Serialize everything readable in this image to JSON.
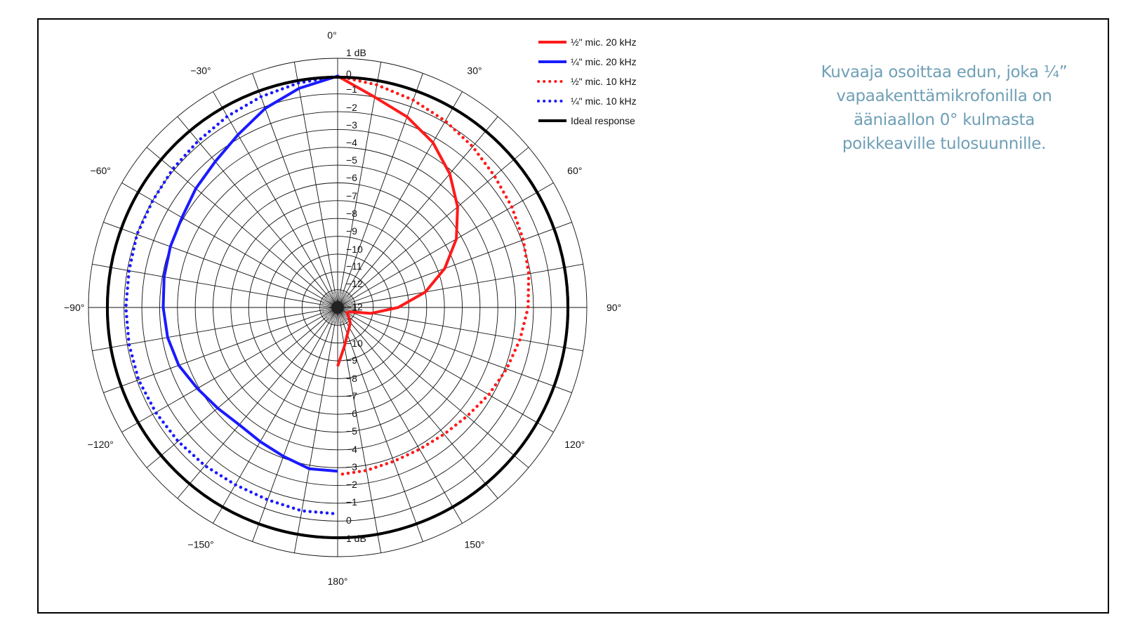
{
  "caption": {
    "lines": [
      "Kuvaaja osoittaa edun, joka ¼”",
      "vapaakenttämikrofonilla on",
      "ääniaallon  0° kulmasta",
      "poikkeaville tulosuunnille."
    ],
    "color": "#6f9fb6"
  },
  "chart_data": {
    "type": "polar",
    "angle_labels": [
      {
        "angle": 0,
        "label": "0°"
      },
      {
        "angle": 30,
        "label": "30°"
      },
      {
        "angle": 60,
        "label": "60°"
      },
      {
        "angle": 90,
        "label": "90°"
      },
      {
        "angle": 120,
        "label": "120°"
      },
      {
        "angle": 150,
        "label": "150°"
      },
      {
        "angle": 180,
        "label": "180°"
      },
      {
        "angle": -150,
        "label": "−150°"
      },
      {
        "angle": -120,
        "label": "−120°"
      },
      {
        "angle": -90,
        "label": "−90°"
      },
      {
        "angle": -60,
        "label": "−60°"
      },
      {
        "angle": -30,
        "label": "−30°"
      }
    ],
    "top_scale_labels": [
      "1 dB",
      "0",
      "−1",
      "−2",
      "−3",
      "−4",
      "−5",
      "−6",
      "−7",
      "−8",
      "−9",
      "−10",
      "−11",
      "−12",
      "−12"
    ],
    "bottom_scale_labels": [
      "−10",
      "−9",
      "−8",
      "−7",
      "−6",
      "−5",
      "−4",
      "−3",
      "−2",
      "−1",
      "0",
      "1 dB"
    ],
    "r_range_db": [
      -13,
      1
    ],
    "grid": true,
    "legend_position": "top-right",
    "series": [
      {
        "name": "½\" mic. 20 kHz",
        "color": "#ff1a1a",
        "style": "solid",
        "side": "right",
        "points": [
          [
            0,
            0
          ],
          [
            10,
            -1
          ],
          [
            20,
            -1.6
          ],
          [
            30,
            -2.3
          ],
          [
            40,
            -3.2
          ],
          [
            50,
            -4.2
          ],
          [
            60,
            -5.3
          ],
          [
            70,
            -6.6
          ],
          [
            80,
            -8
          ],
          [
            90,
            -9.6
          ],
          [
            100,
            -11.1
          ],
          [
            110,
            -12.3
          ],
          [
            120,
            -12.4
          ],
          [
            130,
            -12.2
          ],
          [
            140,
            -11.9
          ],
          [
            150,
            -11.7
          ],
          [
            160,
            -11.4
          ],
          [
            170,
            -10.8
          ],
          [
            180,
            -9.7
          ]
        ]
      },
      {
        "name": "¼\" mic. 20 kHz",
        "color": "#1a1aff",
        "style": "solid",
        "side": "left",
        "points": [
          [
            0,
            0
          ],
          [
            -10,
            -0.5
          ],
          [
            -20,
            -1.1
          ],
          [
            -30,
            -1.8
          ],
          [
            -40,
            -2.3
          ],
          [
            -50,
            -2.6
          ],
          [
            -60,
            -2.9
          ],
          [
            -70,
            -3
          ],
          [
            -80,
            -3.1
          ],
          [
            -90,
            -3.2
          ],
          [
            -100,
            -3.3
          ],
          [
            -110,
            -3.5
          ],
          [
            -120,
            -3.9
          ],
          [
            -130,
            -4.2
          ],
          [
            -140,
            -4.4
          ],
          [
            -150,
            -4.3
          ],
          [
            -160,
            -4.1
          ],
          [
            -170,
            -3.8
          ],
          [
            -180,
            -3.8
          ]
        ]
      },
      {
        "name": "½\" mic. 10 kHz",
        "color": "#ff1a1a",
        "style": "dotted",
        "side": "right",
        "points": [
          [
            0,
            0
          ],
          [
            10,
            -0.3
          ],
          [
            20,
            -0.6
          ],
          [
            30,
            -0.9
          ],
          [
            40,
            -1.2
          ],
          [
            50,
            -1.5
          ],
          [
            60,
            -1.7
          ],
          [
            70,
            -1.9
          ],
          [
            80,
            -2.1
          ],
          [
            90,
            -2.3
          ],
          [
            100,
            -2.6
          ],
          [
            110,
            -2.9
          ],
          [
            120,
            -3.2
          ],
          [
            130,
            -3.5
          ],
          [
            140,
            -3.7
          ],
          [
            150,
            -3.8
          ],
          [
            160,
            -3.8
          ],
          [
            170,
            -3.7
          ],
          [
            180,
            -3.6
          ]
        ]
      },
      {
        "name": "¼\" mic. 10 kHz",
        "color": "#1a1aff",
        "style": "dotted",
        "side": "left",
        "points": [
          [
            0,
            0
          ],
          [
            -10,
            -0.2
          ],
          [
            -20,
            -0.4
          ],
          [
            -30,
            -0.6
          ],
          [
            -40,
            -0.8
          ],
          [
            -50,
            -0.9
          ],
          [
            -60,
            -1
          ],
          [
            -70,
            -1
          ],
          [
            -80,
            -1.1
          ],
          [
            -90,
            -1.1
          ],
          [
            -100,
            -1.1
          ],
          [
            -110,
            -1.1
          ],
          [
            -120,
            -1.2
          ],
          [
            -130,
            -1.3
          ],
          [
            -140,
            -1.4
          ],
          [
            -150,
            -1.5
          ],
          [
            -160,
            -1.5
          ],
          [
            -170,
            -1.4
          ],
          [
            -180,
            -1.4
          ]
        ]
      },
      {
        "name": "Ideal response",
        "color": "#000000",
        "style": "solid",
        "side": "full",
        "points": [
          [
            -180,
            0
          ],
          [
            -90,
            0
          ],
          [
            0,
            0
          ],
          [
            90,
            0
          ],
          [
            180,
            0
          ]
        ]
      }
    ]
  }
}
